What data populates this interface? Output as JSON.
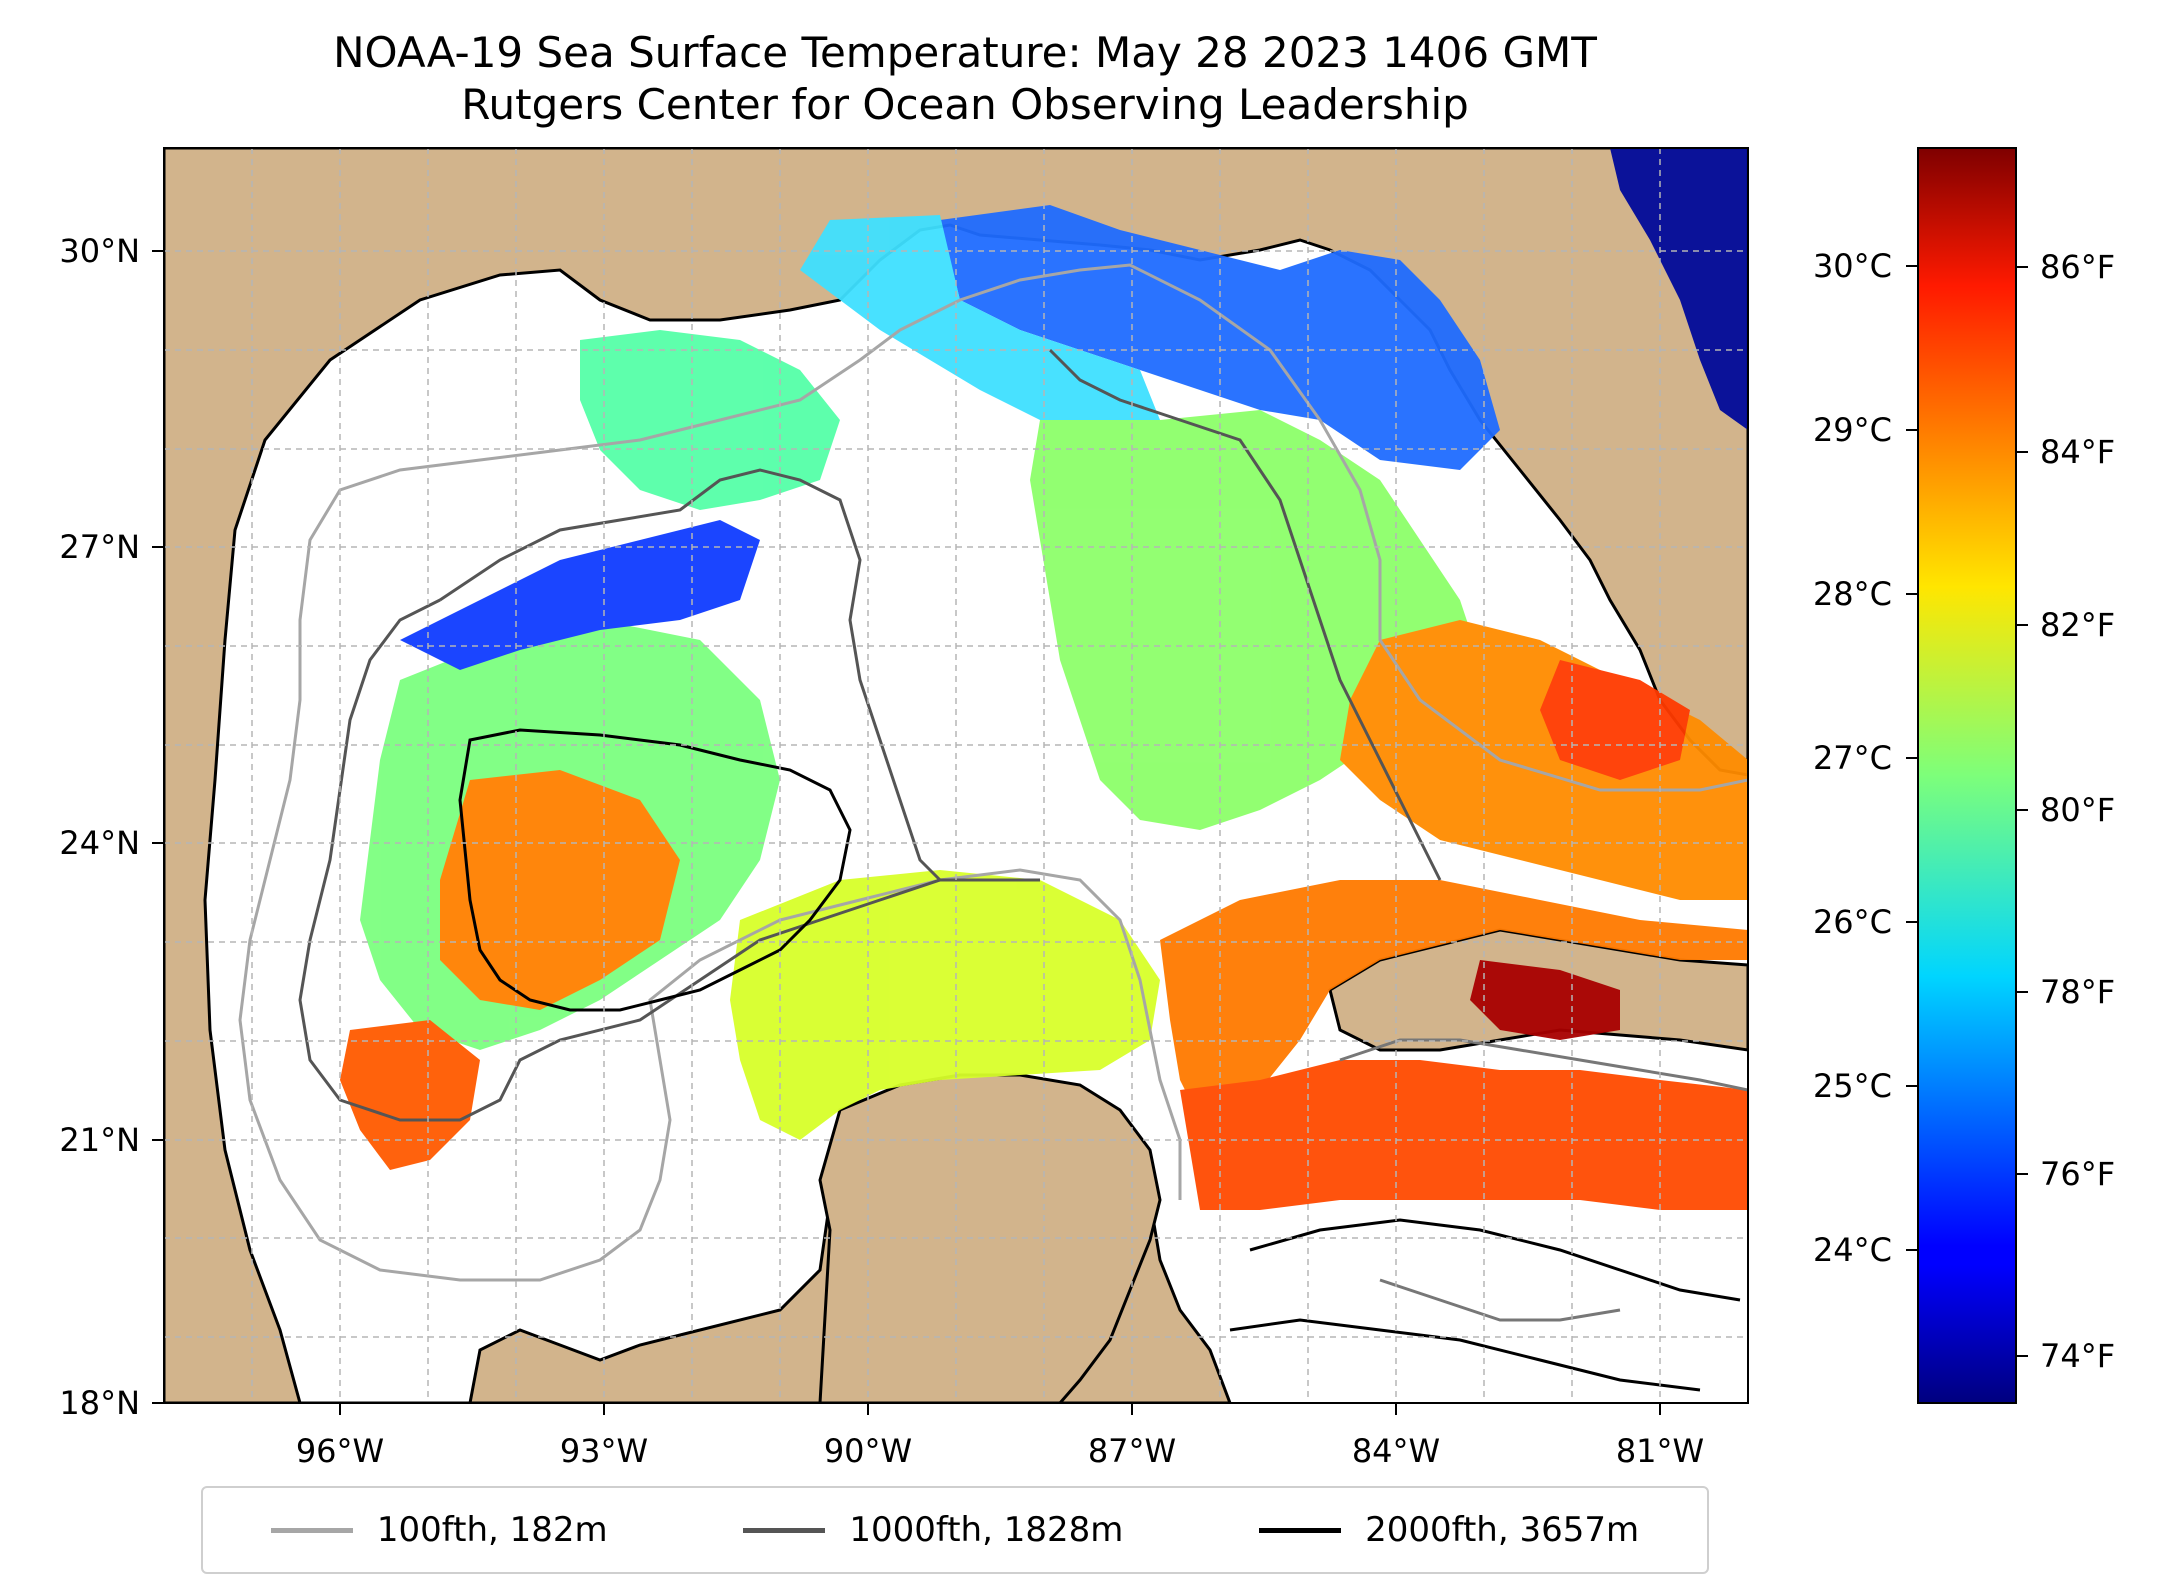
{
  "title": {
    "line1": "NOAA-19 Sea Surface Temperature: May 28 2023 1406 GMT",
    "line2": "Rutgers Center for Ocean Observing Leadership"
  },
  "map": {
    "lat_ticks": [
      "30°N",
      "27°N",
      "24°N",
      "21°N",
      "18°N"
    ],
    "lon_ticks": [
      "96°W",
      "93°W",
      "90°W",
      "87°W",
      "84°W",
      "81°W"
    ],
    "land_color": "#d2b48c",
    "gridlines": true
  },
  "colorbar": {
    "celsius_ticks": [
      "30°C",
      "29°C",
      "28°C",
      "27°C",
      "26°C",
      "25°C",
      "24°C"
    ],
    "fahrenheit_ticks": [
      "86°F",
      "84°F",
      "82°F",
      "80°F",
      "78°F",
      "76°F",
      "74°F"
    ],
    "colormap": "jet"
  },
  "legend": [
    {
      "label": "100fth, 182m",
      "color": "#a6a6a6"
    },
    {
      "label": "1000fth, 1828m",
      "color": "#555555"
    },
    {
      "label": "2000fth, 3657m",
      "color": "#000000"
    }
  ]
}
